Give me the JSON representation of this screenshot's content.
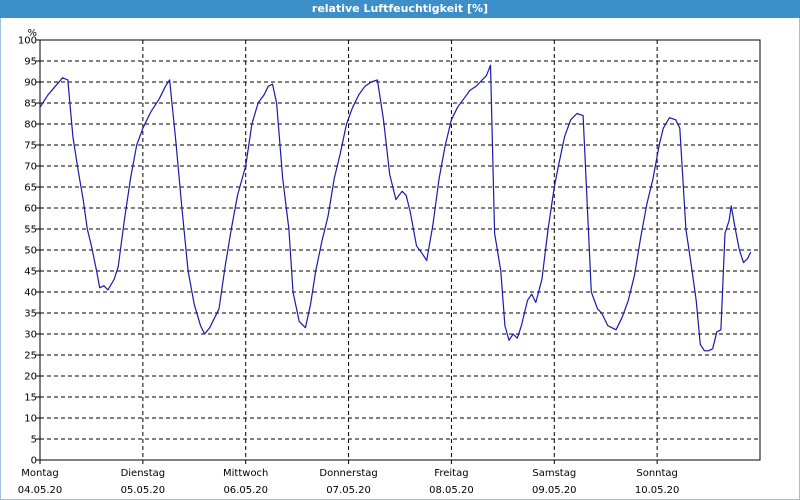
{
  "window": {
    "title": "relative Luftfeuchtigkeit [%]"
  },
  "chart_data": {
    "type": "line",
    "title": "relative Luftfeuchtigkeit [%]",
    "ylabel": "%",
    "xlabel": "",
    "ylim": [
      0,
      100
    ],
    "yticks": [
      0,
      5,
      10,
      15,
      20,
      25,
      30,
      35,
      40,
      45,
      50,
      55,
      60,
      65,
      70,
      75,
      80,
      85,
      90,
      95,
      100
    ],
    "xlim": [
      0,
      7
    ],
    "grid": true,
    "x_ticks": [
      {
        "day": "Montag",
        "date": "04.05.20"
      },
      {
        "day": "Dienstag",
        "date": "05.05.20"
      },
      {
        "day": "Mittwoch",
        "date": "06.05.20"
      },
      {
        "day": "Donnerstag",
        "date": "07.05.20"
      },
      {
        "day": "Freitag",
        "date": "08.05.20"
      },
      {
        "day": "Samstag",
        "date": "09.05.20"
      },
      {
        "day": "Sonntag",
        "date": "10.05.20"
      }
    ],
    "series": [
      {
        "color": "#1a1aa8",
        "points": [
          [
            0.0,
            84
          ],
          [
            0.08,
            87
          ],
          [
            0.15,
            89
          ],
          [
            0.22,
            91
          ],
          [
            0.27,
            90.5
          ],
          [
            0.32,
            77
          ],
          [
            0.37,
            69
          ],
          [
            0.42,
            62
          ],
          [
            0.46,
            55
          ],
          [
            0.5,
            51
          ],
          [
            0.55,
            45
          ],
          [
            0.58,
            41
          ],
          [
            0.62,
            41.5
          ],
          [
            0.66,
            40.5
          ],
          [
            0.72,
            43
          ],
          [
            0.76,
            46
          ],
          [
            0.82,
            57
          ],
          [
            0.88,
            67
          ],
          [
            0.94,
            75
          ],
          [
            1.0,
            79
          ],
          [
            1.08,
            83
          ],
          [
            1.16,
            86
          ],
          [
            1.22,
            89
          ],
          [
            1.26,
            90.5
          ],
          [
            1.32,
            76
          ],
          [
            1.38,
            60
          ],
          [
            1.44,
            45
          ],
          [
            1.5,
            37
          ],
          [
            1.56,
            32
          ],
          [
            1.6,
            30
          ],
          [
            1.65,
            31.5
          ],
          [
            1.7,
            34
          ],
          [
            1.74,
            36
          ],
          [
            1.8,
            46
          ],
          [
            1.86,
            55
          ],
          [
            1.92,
            63
          ],
          [
            2.0,
            70
          ],
          [
            2.06,
            80
          ],
          [
            2.12,
            85
          ],
          [
            2.18,
            87
          ],
          [
            2.22,
            89
          ],
          [
            2.26,
            89.5
          ],
          [
            2.3,
            85
          ],
          [
            2.36,
            67
          ],
          [
            2.42,
            55
          ],
          [
            2.46,
            40
          ],
          [
            2.52,
            33
          ],
          [
            2.58,
            31.5
          ],
          [
            2.63,
            37
          ],
          [
            2.68,
            45
          ],
          [
            2.74,
            52
          ],
          [
            2.8,
            58
          ],
          [
            2.86,
            67
          ],
          [
            2.92,
            73
          ],
          [
            2.98,
            80
          ],
          [
            3.04,
            84
          ],
          [
            3.1,
            87
          ],
          [
            3.16,
            89
          ],
          [
            3.22,
            90
          ],
          [
            3.28,
            90.5
          ],
          [
            3.34,
            81
          ],
          [
            3.4,
            68
          ],
          [
            3.46,
            62
          ],
          [
            3.52,
            64
          ],
          [
            3.56,
            63
          ],
          [
            3.6,
            59
          ],
          [
            3.66,
            51
          ],
          [
            3.72,
            49
          ],
          [
            3.76,
            47.5
          ],
          [
            3.82,
            56
          ],
          [
            3.88,
            67
          ],
          [
            3.94,
            75
          ],
          [
            4.0,
            81
          ],
          [
            4.06,
            84
          ],
          [
            4.12,
            86
          ],
          [
            4.18,
            88
          ],
          [
            4.24,
            89
          ],
          [
            4.28,
            90
          ],
          [
            4.34,
            91.5
          ],
          [
            4.38,
            94
          ],
          [
            4.42,
            54
          ],
          [
            4.48,
            45
          ],
          [
            4.52,
            32
          ],
          [
            4.56,
            28.5
          ],
          [
            4.6,
            30
          ],
          [
            4.64,
            29
          ],
          [
            4.68,
            32
          ],
          [
            4.74,
            38
          ],
          [
            4.78,
            39.5
          ],
          [
            4.82,
            37.5
          ],
          [
            4.88,
            43
          ],
          [
            4.94,
            55
          ],
          [
            5.0,
            65
          ],
          [
            5.04,
            70
          ],
          [
            5.1,
            77
          ],
          [
            5.16,
            81
          ],
          [
            5.22,
            82.5
          ],
          [
            5.28,
            82
          ],
          [
            5.32,
            61
          ],
          [
            5.36,
            40
          ],
          [
            5.42,
            36
          ],
          [
            5.46,
            35
          ],
          [
            5.52,
            32
          ],
          [
            5.56,
            31.5
          ],
          [
            5.6,
            31
          ],
          [
            5.66,
            34
          ],
          [
            5.72,
            38
          ],
          [
            5.78,
            44
          ],
          [
            5.84,
            53
          ],
          [
            5.9,
            61
          ],
          [
            5.96,
            67
          ],
          [
            6.02,
            75
          ],
          [
            6.06,
            79
          ],
          [
            6.12,
            81.5
          ],
          [
            6.18,
            81
          ],
          [
            6.22,
            79
          ],
          [
            6.28,
            55
          ],
          [
            6.34,
            45
          ],
          [
            6.38,
            38
          ],
          [
            6.42,
            27.5
          ],
          [
            6.46,
            26
          ],
          [
            6.5,
            26
          ],
          [
            6.54,
            26.5
          ],
          [
            6.58,
            30.5
          ],
          [
            6.62,
            31
          ],
          [
            6.66,
            54
          ],
          [
            6.7,
            57
          ],
          [
            6.72,
            60.5
          ],
          [
            6.76,
            55
          ],
          [
            6.8,
            50
          ],
          [
            6.84,
            47
          ],
          [
            6.88,
            48
          ],
          [
            6.91,
            49.5
          ]
        ]
      }
    ]
  }
}
